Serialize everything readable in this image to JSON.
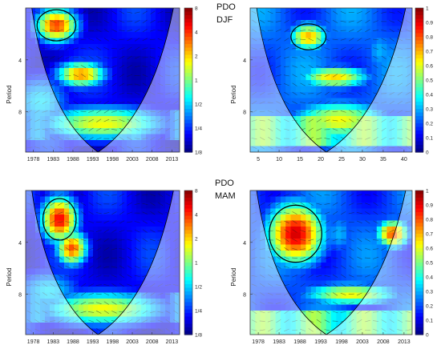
{
  "chart_data": [
    {
      "type": "heatmap",
      "label_line1": "PDO",
      "label_line2": "DJF",
      "ylabel": "Period",
      "x_ticks": [
        "1978",
        "1983",
        "1988",
        "1993",
        "1998",
        "2003",
        "2008",
        "2013"
      ],
      "y_ticks": [
        "4",
        "8"
      ],
      "colorbar_ticks": [
        "8",
        "4",
        "2",
        "1",
        "1/2",
        "1/4",
        "1/8"
      ],
      "colorscale": "jet",
      "cone_of_influence": true,
      "phase_arrows": true
    },
    {
      "type": "heatmap",
      "ylabel": "Period",
      "x_ticks": [
        "5",
        "10",
        "15",
        "20",
        "25",
        "30",
        "35",
        "40"
      ],
      "y_ticks": [
        "4",
        "8"
      ],
      "colorbar_ticks": [
        "1",
        "0.9",
        "0.8",
        "0.7",
        "0.6",
        "0.5",
        "0.4",
        "0.3",
        "0.2",
        "0.1",
        "0"
      ],
      "colorscale": "jet",
      "cone_of_influence": true,
      "phase_arrows": true
    },
    {
      "type": "heatmap",
      "label_line1": "PDO",
      "label_line2": "MAM",
      "ylabel": "Period",
      "x_ticks": [
        "1978",
        "1983",
        "1988",
        "1993",
        "1998",
        "2003",
        "2008",
        "2013"
      ],
      "y_ticks": [
        "4",
        "8"
      ],
      "colorbar_ticks": [
        "8",
        "4",
        "2",
        "1",
        "1/2",
        "1/4",
        "1/8"
      ],
      "colorscale": "jet",
      "cone_of_influence": true,
      "phase_arrows": true
    },
    {
      "type": "heatmap",
      "ylabel": "Period",
      "x_ticks": [
        "1978",
        "1983",
        "1988",
        "1993",
        "1998",
        "2003",
        "2008",
        "2013"
      ],
      "y_ticks": [
        "4",
        "8"
      ],
      "colorbar_ticks": [
        "1",
        "0.9",
        "0.8",
        "0.7",
        "0.6",
        "0.5",
        "0.4",
        "0.3",
        "0.2",
        "0.1",
        "0"
      ],
      "colorscale": "jet",
      "cone_of_influence": true,
      "phase_arrows": true
    }
  ]
}
